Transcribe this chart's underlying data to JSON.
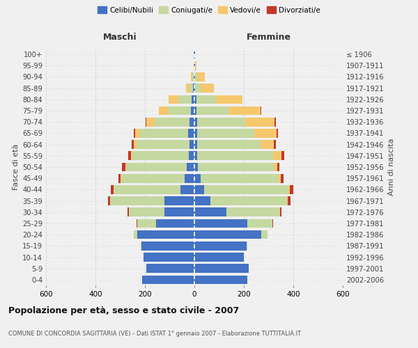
{
  "age_groups": [
    "0-4",
    "5-9",
    "10-14",
    "15-19",
    "20-24",
    "25-29",
    "30-34",
    "35-39",
    "40-44",
    "45-49",
    "50-54",
    "55-59",
    "60-64",
    "65-69",
    "70-74",
    "75-79",
    "80-84",
    "85-89",
    "90-94",
    "95-99",
    "100+"
  ],
  "birth_years": [
    "2002-2006",
    "1997-2001",
    "1992-1996",
    "1987-1991",
    "1982-1986",
    "1977-1981",
    "1972-1976",
    "1967-1971",
    "1962-1966",
    "1957-1961",
    "1952-1956",
    "1947-1951",
    "1942-1946",
    "1937-1941",
    "1932-1936",
    "1927-1931",
    "1922-1926",
    "1917-1921",
    "1912-1916",
    "1907-1911",
    "≤ 1906"
  ],
  "male_celibe": [
    210,
    195,
    205,
    215,
    230,
    155,
    120,
    120,
    55,
    40,
    30,
    22,
    20,
    25,
    20,
    15,
    10,
    5,
    3,
    2,
    2
  ],
  "male_coniugato": [
    0,
    0,
    0,
    2,
    15,
    75,
    145,
    220,
    270,
    255,
    245,
    230,
    215,
    195,
    140,
    90,
    55,
    15,
    5,
    1,
    0
  ],
  "male_vedovo": [
    0,
    0,
    0,
    0,
    0,
    0,
    0,
    0,
    2,
    3,
    5,
    5,
    10,
    20,
    35,
    40,
    40,
    15,
    5,
    1,
    0
  ],
  "male_divorziato": [
    0,
    0,
    0,
    0,
    1,
    3,
    5,
    8,
    10,
    10,
    12,
    12,
    8,
    5,
    2,
    0,
    0,
    0,
    0,
    0,
    0
  ],
  "female_celibe": [
    215,
    220,
    200,
    210,
    270,
    215,
    130,
    65,
    40,
    25,
    15,
    12,
    12,
    12,
    10,
    8,
    8,
    4,
    3,
    2,
    2
  ],
  "female_coniugato": [
    0,
    0,
    0,
    5,
    25,
    100,
    215,
    310,
    340,
    315,
    305,
    305,
    255,
    230,
    195,
    130,
    80,
    20,
    8,
    1,
    0
  ],
  "female_vedovo": [
    0,
    0,
    0,
    0,
    0,
    1,
    2,
    3,
    5,
    8,
    15,
    35,
    55,
    90,
    120,
    130,
    105,
    55,
    30,
    5,
    1
  ],
  "female_divorziato": [
    0,
    0,
    0,
    0,
    1,
    3,
    5,
    10,
    15,
    12,
    10,
    12,
    8,
    5,
    5,
    2,
    2,
    0,
    0,
    0,
    0
  ],
  "colors": {
    "celibe": "#4472C4",
    "coniugato": "#C5D8A0",
    "vedovo": "#F5C86E",
    "divorziato": "#C0392B"
  },
  "title": "Popolazione per età, sesso e stato civile - 2007",
  "subtitle": "COMUNE DI CONCORDIA SAGITTARIA (VE) - Dati ISTAT 1° gennaio 2007 - Elaborazione TUTTITALIA.IT",
  "xlabel_left": "Maschi",
  "xlabel_right": "Femmine",
  "ylabel_left": "Fasce di età",
  "ylabel_right": "Anni di nascita",
  "xlim": 600,
  "bg_color": "#f0f0f0"
}
